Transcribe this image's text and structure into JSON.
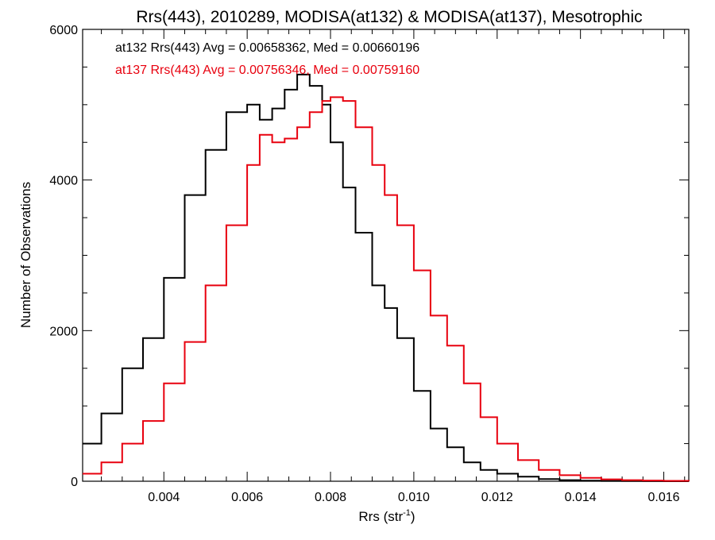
{
  "chart_data": {
    "type": "line",
    "style": "step-histogram",
    "title": "Rrs(443), 2010289, MODISA(at132) & MODISA(at137), Mesotrophic",
    "xlabel": "Rrs (str",
    "xlabel_sup": "-1",
    "xlabel_suffix": ")",
    "ylabel": "Number of Observations",
    "xlim": [
      0.00205,
      0.0166
    ],
    "ylim": [
      0,
      6000
    ],
    "x_ticks": [
      0.004,
      0.006,
      0.008,
      0.01,
      0.012,
      0.014,
      0.016
    ],
    "x_tick_labels": [
      "0.004",
      "0.006",
      "0.008",
      "0.010",
      "0.012",
      "0.014",
      "0.016"
    ],
    "y_ticks": [
      0,
      2000,
      4000,
      6000
    ],
    "y_tick_labels": [
      "0",
      "2000",
      "4000",
      "6000"
    ],
    "grid": false,
    "legend_placement": "top-left",
    "series": [
      {
        "name": "at132",
        "label": "at132 Rrs(443) Avg = 0.00658362, Med = 0.00660196",
        "color": "#000000",
        "x": [
          0.00205,
          0.0025,
          0.003,
          0.0035,
          0.004,
          0.0045,
          0.005,
          0.0055,
          0.006,
          0.0063,
          0.0066,
          0.0069,
          0.0072,
          0.0075,
          0.0078,
          0.008,
          0.0083,
          0.0086,
          0.009,
          0.0093,
          0.0096,
          0.01,
          0.0104,
          0.0108,
          0.0112,
          0.0116,
          0.012,
          0.0125,
          0.013,
          0.0135,
          0.014,
          0.0145,
          0.015,
          0.0155,
          0.016,
          0.0166
        ],
        "values": [
          500,
          900,
          1500,
          1900,
          2700,
          3800,
          4400,
          4900,
          5000,
          4800,
          4950,
          5200,
          5400,
          5250,
          5000,
          4500,
          3900,
          3300,
          2600,
          2300,
          1900,
          1200,
          700,
          450,
          250,
          150,
          100,
          60,
          30,
          15,
          8,
          4,
          2,
          1,
          0,
          0
        ]
      },
      {
        "name": "at137",
        "label": "at137 Rrs(443) Avg = 0.00756346, Med = 0.00759160",
        "color": "#e8000e",
        "x": [
          0.00205,
          0.0025,
          0.003,
          0.0035,
          0.004,
          0.0045,
          0.005,
          0.0055,
          0.006,
          0.0063,
          0.0066,
          0.0069,
          0.0072,
          0.0075,
          0.0078,
          0.008,
          0.0083,
          0.0086,
          0.009,
          0.0093,
          0.0096,
          0.01,
          0.0104,
          0.0108,
          0.0112,
          0.0116,
          0.012,
          0.0125,
          0.013,
          0.0135,
          0.014,
          0.0145,
          0.015,
          0.0155,
          0.016,
          0.0166
        ],
        "values": [
          100,
          250,
          500,
          800,
          1300,
          1850,
          2600,
          3400,
          4200,
          4600,
          4500,
          4550,
          4700,
          4900,
          5050,
          5100,
          5050,
          4700,
          4200,
          3800,
          3400,
          2800,
          2200,
          1800,
          1300,
          850,
          500,
          280,
          150,
          80,
          45,
          25,
          15,
          10,
          5,
          0
        ]
      }
    ]
  }
}
